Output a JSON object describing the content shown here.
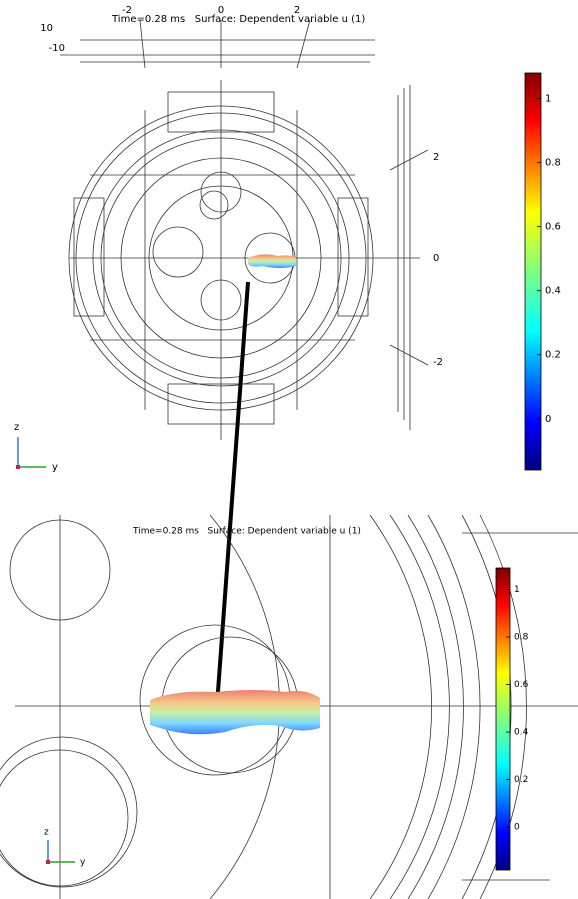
{
  "top_view": {
    "title": "Time=0.28 ms   Surface: Dependent variable u (1)",
    "horizontal_ticks": [
      -2,
      0,
      2
    ],
    "depth_ticks": [
      10,
      -10
    ],
    "vertical_ticks": [
      2,
      0,
      -2
    ],
    "axes": {
      "vertical": "z",
      "horizontal": "y"
    },
    "colorbar": {
      "range": [
        -0.16,
        1.08
      ],
      "ticks": [
        1,
        0.8,
        0.6,
        0.4,
        0.2,
        0
      ]
    }
  },
  "zoom_view": {
    "title": "Time=0.28 ms   Surface: Dependent variable u (1)",
    "axes": {
      "vertical": "z",
      "horizontal": "y"
    },
    "colorbar": {
      "range": [
        -0.18,
        1.09
      ],
      "ticks": [
        1,
        0.8,
        0.6,
        0.4,
        0.2,
        0
      ]
    }
  }
}
